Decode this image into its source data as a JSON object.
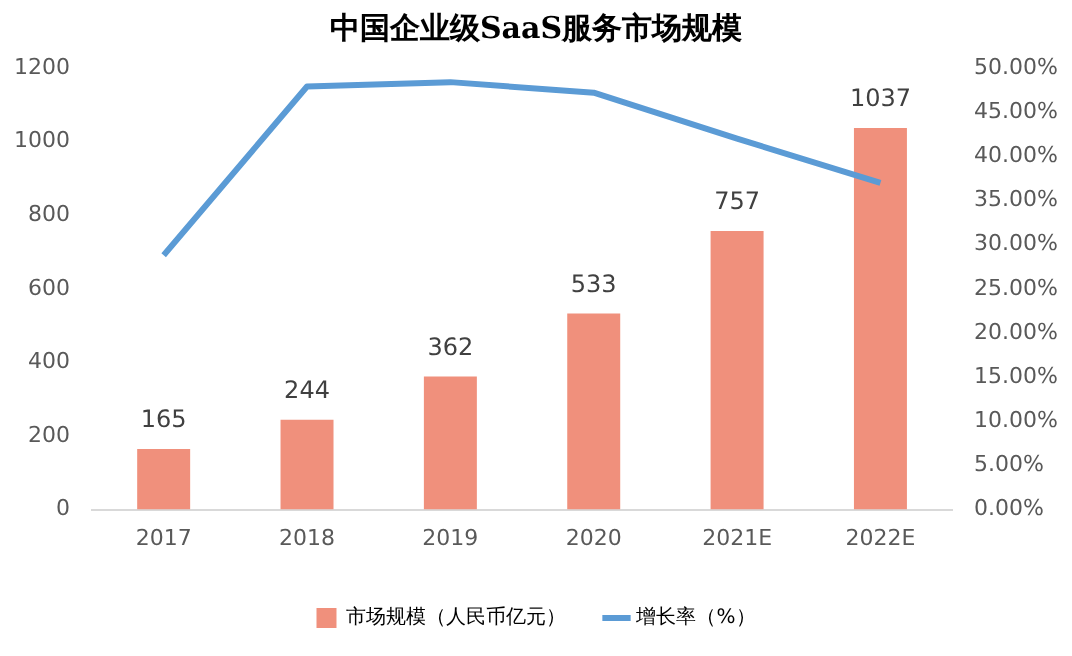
{
  "chart_data": {
    "type": "bar",
    "title": "中国企业级SaaS服务市场规模",
    "categories": [
      "2017",
      "2018",
      "2019",
      "2020",
      "2021E",
      "2022E"
    ],
    "series": [
      {
        "name": "市场规模（人民币亿元）",
        "color": "#f0907c",
        "values": [
          165,
          244,
          362,
          533,
          757,
          1037
        ]
      },
      {
        "name": "增长率（%）",
        "type": "line",
        "axis": "y2",
        "color": "#5b9bd5",
        "values": [
          28.8,
          47.9,
          48.4,
          47.2,
          42.0,
          37.0
        ]
      }
    ],
    "ylim": [
      0,
      1200
    ],
    "yticks": [
      0,
      200,
      400,
      600,
      800,
      1000,
      1200
    ],
    "y2lim": [
      0,
      50
    ],
    "y2ticks": [
      {
        "value": 0,
        "label": "0.00%"
      },
      {
        "value": 5,
        "label": "5.00%"
      },
      {
        "value": 10,
        "label": "10.00%"
      },
      {
        "value": 15,
        "label": "15.00%"
      },
      {
        "value": 20,
        "label": "20.00%"
      },
      {
        "value": 25,
        "label": "25.00%"
      },
      {
        "value": 30,
        "label": "30.00%"
      },
      {
        "value": 35,
        "label": "35.00%"
      },
      {
        "value": 40,
        "label": "40.00%"
      },
      {
        "value": 45,
        "label": "45.00%"
      },
      {
        "value": 50,
        "label": "50.00%"
      }
    ],
    "value_labels": [
      "165",
      "244",
      "362",
      "533",
      "757",
      "1037"
    ],
    "grid": false,
    "legend": "bottom",
    "marker": "none"
  }
}
